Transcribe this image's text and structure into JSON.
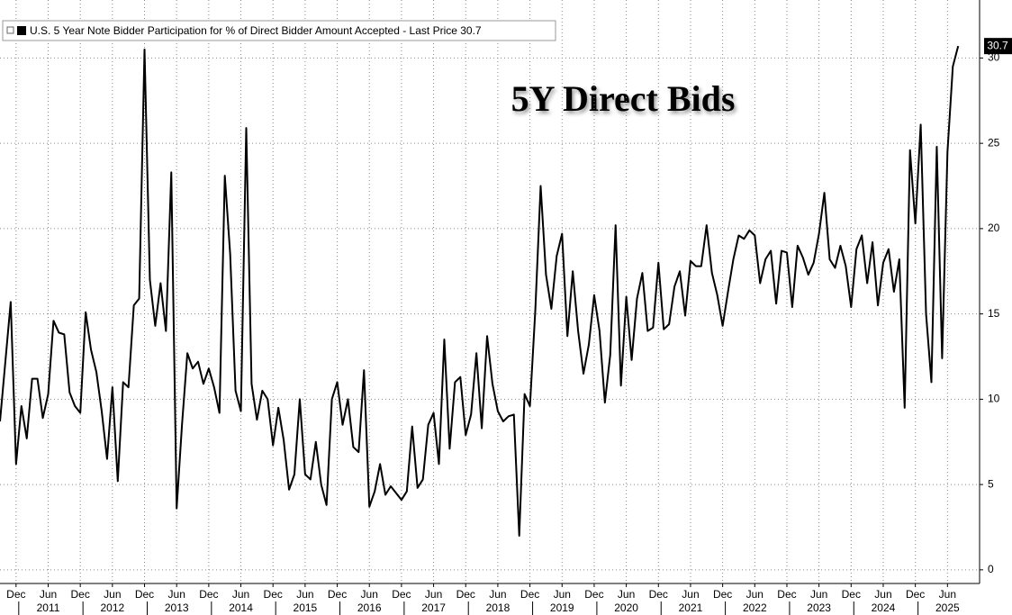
{
  "chart_data": {
    "type": "line",
    "annotation": "5Y Direct Bids",
    "x": [
      "2010-09",
      "2010-10",
      "2010-11",
      "2010-12",
      "2011-01",
      "2011-02",
      "2011-03",
      "2011-04",
      "2011-05",
      "2011-06",
      "2011-07",
      "2011-08",
      "2011-09",
      "2011-10",
      "2011-11",
      "2011-12",
      "2012-01",
      "2012-02",
      "2012-03",
      "2012-04",
      "2012-05",
      "2012-06",
      "2012-07",
      "2012-08",
      "2012-09",
      "2012-10",
      "2012-11",
      "2012-12",
      "2013-01",
      "2013-02",
      "2013-03",
      "2013-04",
      "2013-05",
      "2013-06",
      "2013-07",
      "2013-08",
      "2013-09",
      "2013-10",
      "2013-11",
      "2013-12",
      "2014-01",
      "2014-02",
      "2014-03",
      "2014-04",
      "2014-05",
      "2014-06",
      "2014-07",
      "2014-08",
      "2014-09",
      "2014-10",
      "2014-11",
      "2014-12",
      "2015-01",
      "2015-02",
      "2015-03",
      "2015-04",
      "2015-05",
      "2015-06",
      "2015-07",
      "2015-08",
      "2015-09",
      "2015-10",
      "2015-11",
      "2015-12",
      "2016-01",
      "2016-02",
      "2016-03",
      "2016-04",
      "2016-05",
      "2016-06",
      "2016-07",
      "2016-08",
      "2016-09",
      "2016-10",
      "2016-11",
      "2016-12",
      "2017-01",
      "2017-02",
      "2017-03",
      "2017-04",
      "2017-05",
      "2017-06",
      "2017-07",
      "2017-08",
      "2017-09",
      "2017-10",
      "2017-11",
      "2017-12",
      "2018-01",
      "2018-02",
      "2018-03",
      "2018-04",
      "2018-05",
      "2018-06",
      "2018-07",
      "2018-08",
      "2018-09",
      "2018-10",
      "2018-11",
      "2018-12",
      "2019-01",
      "2019-02",
      "2019-03",
      "2019-04",
      "2019-05",
      "2019-06",
      "2019-07",
      "2019-08",
      "2019-09",
      "2019-10",
      "2019-11",
      "2019-12",
      "2020-01",
      "2020-02",
      "2020-03",
      "2020-04",
      "2020-05",
      "2020-06",
      "2020-07",
      "2020-08",
      "2020-09",
      "2020-10",
      "2020-11",
      "2020-12",
      "2021-01",
      "2021-02",
      "2021-03",
      "2021-04",
      "2021-05",
      "2021-06",
      "2021-07",
      "2021-08",
      "2021-09",
      "2021-10",
      "2021-11",
      "2021-12",
      "2022-01",
      "2022-02",
      "2022-03",
      "2022-04",
      "2022-05",
      "2022-06",
      "2022-07",
      "2022-08",
      "2022-09",
      "2022-10",
      "2022-11",
      "2022-12",
      "2023-01",
      "2023-02",
      "2023-03",
      "2023-04",
      "2023-05",
      "2023-06",
      "2023-07",
      "2023-08",
      "2023-09",
      "2023-10",
      "2023-11",
      "2023-12",
      "2024-01",
      "2024-02",
      "2024-03",
      "2024-04",
      "2024-05",
      "2024-06",
      "2024-07",
      "2024-08",
      "2024-09",
      "2024-10",
      "2024-11",
      "2024-12",
      "2025-01",
      "2025-02",
      "2025-03",
      "2025-04",
      "2025-05",
      "2025-06",
      "2025-07",
      "2025-08"
    ],
    "series": [
      {
        "name": "U.S. 5 Year Note Bidder Participation for % of Direct Bidder Amount Accepted - Last Price 30.7",
        "color": "#000000",
        "values": [
          8.7,
          12.2,
          15.7,
          6.2,
          9.6,
          7.7,
          11.2,
          11.2,
          8.9,
          10.3,
          14.6,
          13.9,
          13.8,
          10.4,
          9.6,
          9.2,
          15.1,
          12.9,
          11.6,
          9.3,
          6.5,
          10.7,
          5.2,
          11.0,
          10.7,
          15.5,
          15.9,
          30.5,
          17.0,
          14.3,
          16.8,
          14.0,
          23.3,
          3.6,
          8.5,
          12.7,
          11.8,
          12.2,
          10.9,
          11.8,
          10.7,
          9.2,
          23.1,
          18.5,
          10.5,
          9.3,
          25.9,
          10.9,
          8.8,
          10.5,
          10.0,
          7.3,
          9.5,
          7.6,
          4.7,
          5.6,
          10.0,
          5.6,
          5.3,
          7.5,
          5.0,
          3.8,
          10.0,
          11.0,
          8.5,
          10.0,
          7.2,
          6.9,
          11.7,
          3.7,
          4.6,
          6.2,
          4.4,
          4.9,
          4.5,
          4.1,
          4.6,
          8.4,
          4.8,
          5.3,
          8.5,
          9.2,
          6.2,
          13.5,
          7.1,
          11.0,
          11.3,
          7.9,
          9.1,
          12.7,
          8.3,
          13.7,
          10.9,
          9.3,
          8.7,
          9.0,
          9.1,
          2.0,
          10.3,
          9.6,
          15.2,
          22.5,
          17.3,
          15.3,
          18.4,
          19.7,
          13.7,
          17.5,
          14.0,
          11.5,
          13.2,
          16.1,
          14.0,
          9.8,
          12.6,
          20.2,
          10.8,
          16.0,
          12.3,
          15.9,
          17.4,
          14.0,
          14.2,
          18.0,
          14.1,
          14.4,
          16.6,
          17.5,
          14.9,
          18.1,
          17.8,
          17.8,
          20.2,
          17.4,
          16.1,
          14.3,
          16.3,
          18.2,
          19.6,
          19.4,
          19.9,
          19.6,
          16.8,
          18.2,
          18.7,
          15.6,
          18.7,
          18.6,
          15.4,
          19.0,
          18.3,
          17.3,
          18.0,
          19.7,
          22.1,
          18.2,
          17.7,
          19.0,
          17.8,
          15.4,
          18.8,
          19.6,
          16.8,
          19.2,
          15.5,
          18.0,
          18.8,
          16.3,
          18.2,
          9.5,
          24.6,
          20.3,
          26.1,
          15.0,
          11.0,
          24.8,
          12.4,
          24.5,
          29.5,
          30.7
        ]
      }
    ],
    "xlim": [
      "2010-09",
      "2025-12"
    ],
    "xticks": [
      {
        "value": "2010-12",
        "label": "Dec"
      },
      {
        "value": "2011-06",
        "label": "Jun"
      },
      {
        "value": "2011-12",
        "label": "Dec"
      },
      {
        "value": "2012-06",
        "label": "Jun"
      },
      {
        "value": "2012-12",
        "label": "Dec"
      },
      {
        "value": "2013-06",
        "label": "Jun"
      },
      {
        "value": "2013-12",
        "label": "Dec"
      },
      {
        "value": "2014-06",
        "label": "Jun"
      },
      {
        "value": "2014-12",
        "label": "Dec"
      },
      {
        "value": "2015-06",
        "label": "Jun"
      },
      {
        "value": "2015-12",
        "label": "Dec"
      },
      {
        "value": "2016-06",
        "label": "Jun"
      },
      {
        "value": "2016-12",
        "label": "Dec"
      },
      {
        "value": "2017-06",
        "label": "Jun"
      },
      {
        "value": "2017-12",
        "label": "Dec"
      },
      {
        "value": "2018-06",
        "label": "Jun"
      },
      {
        "value": "2018-12",
        "label": "Dec"
      },
      {
        "value": "2019-06",
        "label": "Jun"
      },
      {
        "value": "2019-12",
        "label": "Dec"
      },
      {
        "value": "2020-06",
        "label": "Jun"
      },
      {
        "value": "2020-12",
        "label": "Dec"
      },
      {
        "value": "2021-06",
        "label": "Jun"
      },
      {
        "value": "2021-12",
        "label": "Dec"
      },
      {
        "value": "2022-06",
        "label": "Jun"
      },
      {
        "value": "2022-12",
        "label": "Dec"
      },
      {
        "value": "2023-06",
        "label": "Jun"
      },
      {
        "value": "2023-12",
        "label": "Dec"
      },
      {
        "value": "2024-06",
        "label": "Jun"
      },
      {
        "value": "2024-12",
        "label": "Dec"
      },
      {
        "value": "2025-06",
        "label": "Jun"
      }
    ],
    "year_labels": [
      {
        "value": "2011-06",
        "label": "2011"
      },
      {
        "value": "2012-06",
        "label": "2012"
      },
      {
        "value": "2013-06",
        "label": "2013"
      },
      {
        "value": "2014-06",
        "label": "2014"
      },
      {
        "value": "2015-06",
        "label": "2015"
      },
      {
        "value": "2016-06",
        "label": "2016"
      },
      {
        "value": "2017-06",
        "label": "2017"
      },
      {
        "value": "2018-06",
        "label": "2018"
      },
      {
        "value": "2019-06",
        "label": "2019"
      },
      {
        "value": "2020-06",
        "label": "2020"
      },
      {
        "value": "2021-06",
        "label": "2021"
      },
      {
        "value": "2022-06",
        "label": "2022"
      },
      {
        "value": "2023-06",
        "label": "2023"
      },
      {
        "value": "2024-06",
        "label": "2024"
      },
      {
        "value": "2025-06",
        "label": "2025"
      }
    ],
    "ylim": [
      -0.8,
      33.4
    ],
    "yticks": [
      0,
      5,
      10,
      15,
      20,
      25,
      30
    ],
    "grid": true
  }
}
